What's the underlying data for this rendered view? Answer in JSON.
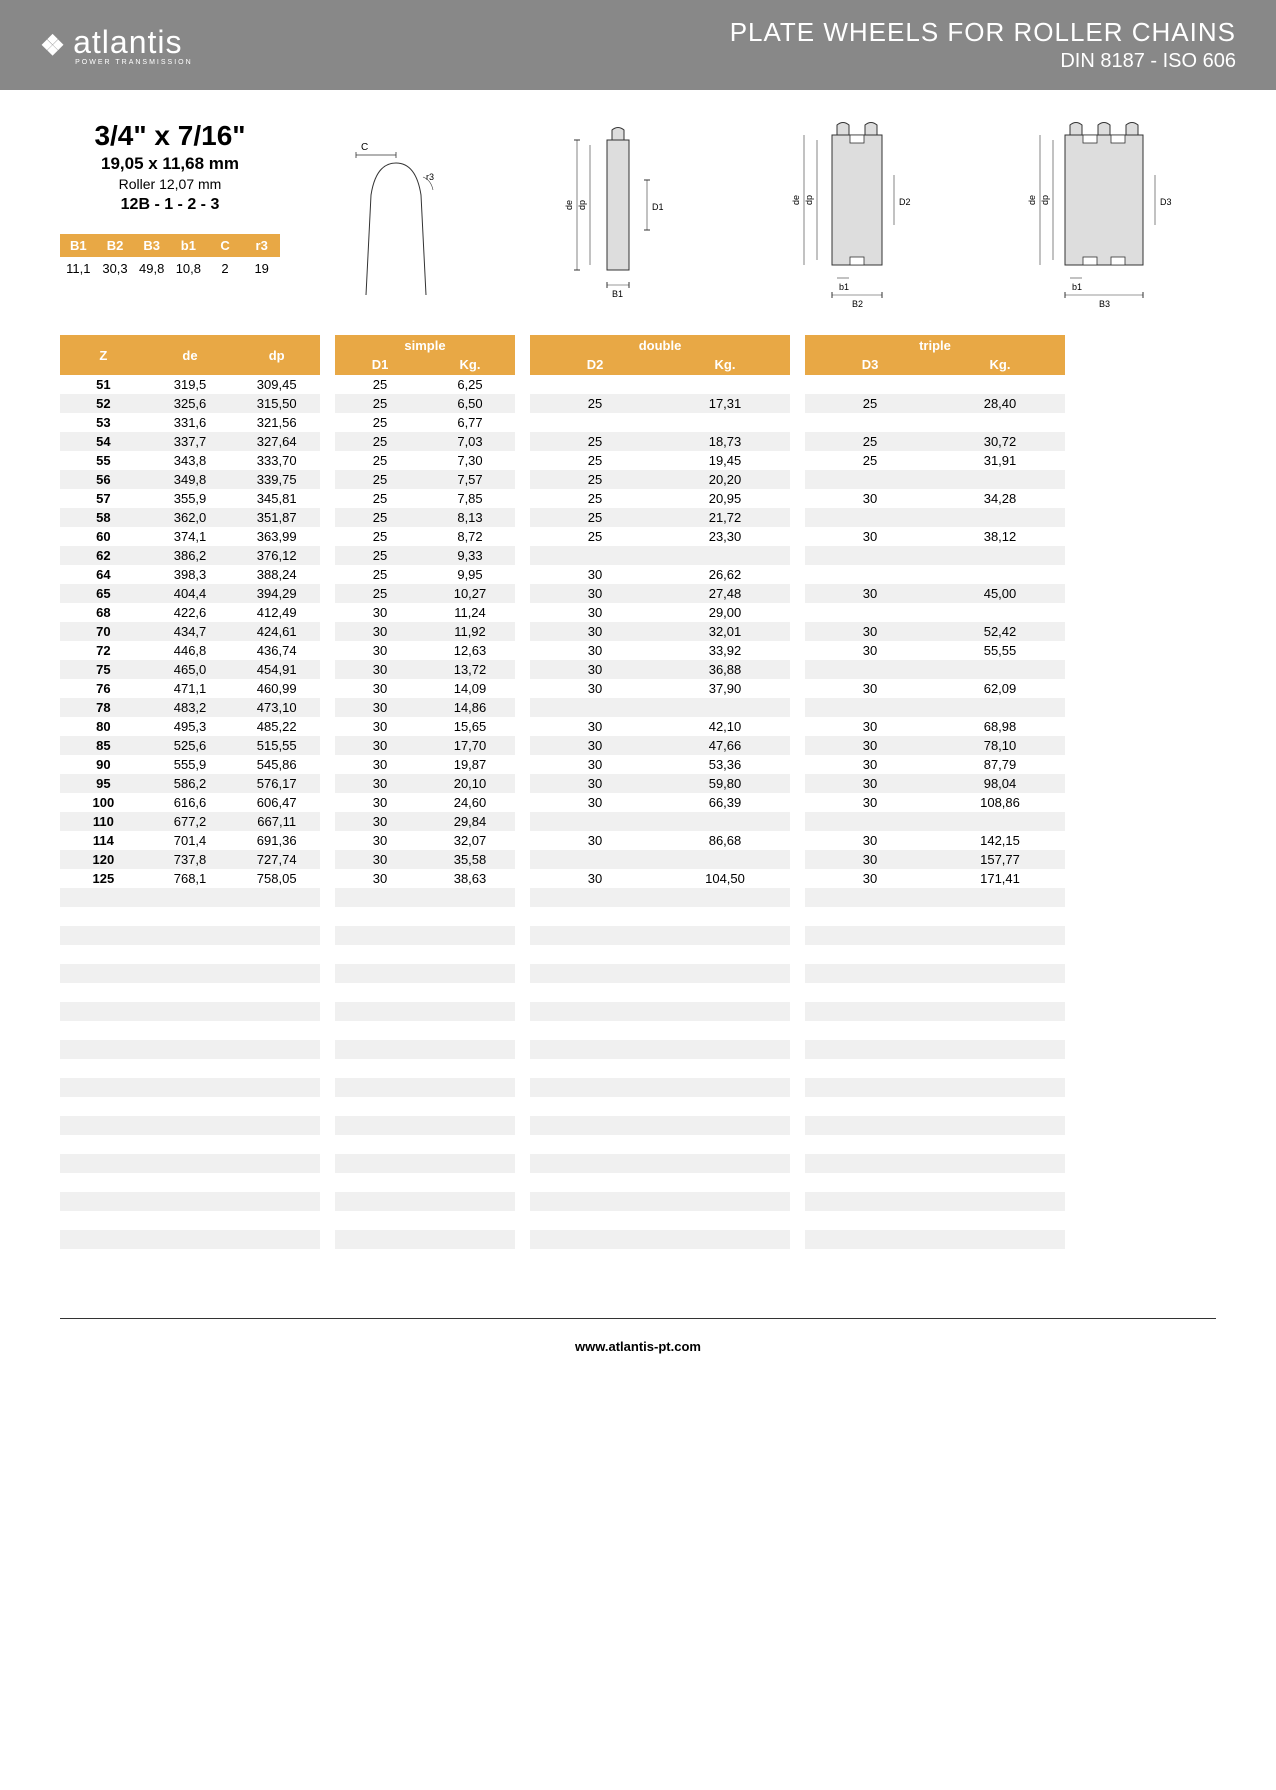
{
  "header": {
    "logo_text": "atlantis",
    "logo_sub": "POWER TRANSMISSION",
    "title": "PLATE WHEELS FOR ROLLER CHAINS",
    "subtitle": "DIN 8187 - ISO 606"
  },
  "spec": {
    "title": "3/4\" x 7/16\"",
    "sub1": "19,05 x 11,68 mm",
    "sub2": "Roller 12,07 mm",
    "sub3": "12B - 1 - 2 - 3"
  },
  "small_table": {
    "headers": [
      "B1",
      "B2",
      "B3",
      "b1",
      "C",
      "r3"
    ],
    "values": [
      "11,1",
      "30,3",
      "49,8",
      "10,8",
      "2",
      "19"
    ]
  },
  "colors": {
    "header_bg": "#888888",
    "accent": "#e8a845",
    "row_even": "#f0f0f0"
  },
  "main_table": {
    "base_headers": [
      "Z",
      "de",
      "dp"
    ],
    "simple_label": "simple",
    "simple_headers": [
      "D1",
      "Kg."
    ],
    "double_label": "double",
    "double_headers": [
      "D2",
      "Kg."
    ],
    "triple_label": "triple",
    "triple_headers": [
      "D3",
      "Kg."
    ],
    "rows": [
      {
        "z": "51",
        "de": "319,5",
        "dp": "309,45",
        "d1": "25",
        "kg1": "6,25",
        "d2": "",
        "kg2": "",
        "d3": "",
        "kg3": ""
      },
      {
        "z": "52",
        "de": "325,6",
        "dp": "315,50",
        "d1": "25",
        "kg1": "6,50",
        "d2": "25",
        "kg2": "17,31",
        "d3": "25",
        "kg3": "28,40"
      },
      {
        "z": "53",
        "de": "331,6",
        "dp": "321,56",
        "d1": "25",
        "kg1": "6,77",
        "d2": "",
        "kg2": "",
        "d3": "",
        "kg3": ""
      },
      {
        "z": "54",
        "de": "337,7",
        "dp": "327,64",
        "d1": "25",
        "kg1": "7,03",
        "d2": "25",
        "kg2": "18,73",
        "d3": "25",
        "kg3": "30,72"
      },
      {
        "z": "55",
        "de": "343,8",
        "dp": "333,70",
        "d1": "25",
        "kg1": "7,30",
        "d2": "25",
        "kg2": "19,45",
        "d3": "25",
        "kg3": "31,91"
      },
      {
        "z": "56",
        "de": "349,8",
        "dp": "339,75",
        "d1": "25",
        "kg1": "7,57",
        "d2": "25",
        "kg2": "20,20",
        "d3": "",
        "kg3": ""
      },
      {
        "z": "57",
        "de": "355,9",
        "dp": "345,81",
        "d1": "25",
        "kg1": "7,85",
        "d2": "25",
        "kg2": "20,95",
        "d3": "30",
        "kg3": "34,28"
      },
      {
        "z": "58",
        "de": "362,0",
        "dp": "351,87",
        "d1": "25",
        "kg1": "8,13",
        "d2": "25",
        "kg2": "21,72",
        "d3": "",
        "kg3": ""
      },
      {
        "z": "60",
        "de": "374,1",
        "dp": "363,99",
        "d1": "25",
        "kg1": "8,72",
        "d2": "25",
        "kg2": "23,30",
        "d3": "30",
        "kg3": "38,12"
      },
      {
        "z": "62",
        "de": "386,2",
        "dp": "376,12",
        "d1": "25",
        "kg1": "9,33",
        "d2": "",
        "kg2": "",
        "d3": "",
        "kg3": ""
      },
      {
        "z": "64",
        "de": "398,3",
        "dp": "388,24",
        "d1": "25",
        "kg1": "9,95",
        "d2": "30",
        "kg2": "26,62",
        "d3": "",
        "kg3": ""
      },
      {
        "z": "65",
        "de": "404,4",
        "dp": "394,29",
        "d1": "25",
        "kg1": "10,27",
        "d2": "30",
        "kg2": "27,48",
        "d3": "30",
        "kg3": "45,00"
      },
      {
        "z": "68",
        "de": "422,6",
        "dp": "412,49",
        "d1": "30",
        "kg1": "11,24",
        "d2": "30",
        "kg2": "29,00",
        "d3": "",
        "kg3": ""
      },
      {
        "z": "70",
        "de": "434,7",
        "dp": "424,61",
        "d1": "30",
        "kg1": "11,92",
        "d2": "30",
        "kg2": "32,01",
        "d3": "30",
        "kg3": "52,42"
      },
      {
        "z": "72",
        "de": "446,8",
        "dp": "436,74",
        "d1": "30",
        "kg1": "12,63",
        "d2": "30",
        "kg2": "33,92",
        "d3": "30",
        "kg3": "55,55"
      },
      {
        "z": "75",
        "de": "465,0",
        "dp": "454,91",
        "d1": "30",
        "kg1": "13,72",
        "d2": "30",
        "kg2": "36,88",
        "d3": "",
        "kg3": ""
      },
      {
        "z": "76",
        "de": "471,1",
        "dp": "460,99",
        "d1": "30",
        "kg1": "14,09",
        "d2": "30",
        "kg2": "37,90",
        "d3": "30",
        "kg3": "62,09"
      },
      {
        "z": "78",
        "de": "483,2",
        "dp": "473,10",
        "d1": "30",
        "kg1": "14,86",
        "d2": "",
        "kg2": "",
        "d3": "",
        "kg3": ""
      },
      {
        "z": "80",
        "de": "495,3",
        "dp": "485,22",
        "d1": "30",
        "kg1": "15,65",
        "d2": "30",
        "kg2": "42,10",
        "d3": "30",
        "kg3": "68,98"
      },
      {
        "z": "85",
        "de": "525,6",
        "dp": "515,55",
        "d1": "30",
        "kg1": "17,70",
        "d2": "30",
        "kg2": "47,66",
        "d3": "30",
        "kg3": "78,10"
      },
      {
        "z": "90",
        "de": "555,9",
        "dp": "545,86",
        "d1": "30",
        "kg1": "19,87",
        "d2": "30",
        "kg2": "53,36",
        "d3": "30",
        "kg3": "87,79"
      },
      {
        "z": "95",
        "de": "586,2",
        "dp": "576,17",
        "d1": "30",
        "kg1": "20,10",
        "d2": "30",
        "kg2": "59,80",
        "d3": "30",
        "kg3": "98,04"
      },
      {
        "z": "100",
        "de": "616,6",
        "dp": "606,47",
        "d1": "30",
        "kg1": "24,60",
        "d2": "30",
        "kg2": "66,39",
        "d3": "30",
        "kg3": "108,86"
      },
      {
        "z": "110",
        "de": "677,2",
        "dp": "667,11",
        "d1": "30",
        "kg1": "29,84",
        "d2": "",
        "kg2": "",
        "d3": "",
        "kg3": ""
      },
      {
        "z": "114",
        "de": "701,4",
        "dp": "691,36",
        "d1": "30",
        "kg1": "32,07",
        "d2": "30",
        "kg2": "86,68",
        "d3": "30",
        "kg3": "142,15"
      },
      {
        "z": "120",
        "de": "737,8",
        "dp": "727,74",
        "d1": "30",
        "kg1": "35,58",
        "d2": "",
        "kg2": "",
        "d3": "30",
        "kg3": "157,77"
      },
      {
        "z": "125",
        "de": "768,1",
        "dp": "758,05",
        "d1": "30",
        "kg1": "38,63",
        "d2": "30",
        "kg2": "104,50",
        "d3": "30",
        "kg3": "171,41"
      }
    ],
    "empty_rows": 20
  },
  "footer": {
    "url": "www.atlantis-pt.com"
  }
}
